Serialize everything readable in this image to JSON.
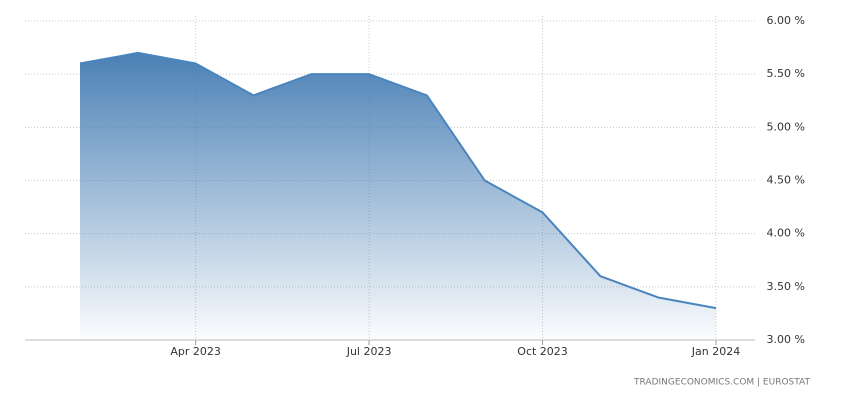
{
  "chart_data": {
    "type": "area",
    "x": [
      "2023-02",
      "2023-03",
      "2023-04",
      "2023-05",
      "2023-06",
      "2023-07",
      "2023-08",
      "2023-09",
      "2023-10",
      "2023-11",
      "2023-12",
      "2024-01"
    ],
    "values": [
      5.6,
      5.7,
      5.6,
      5.3,
      5.5,
      5.5,
      5.3,
      4.5,
      4.2,
      3.6,
      3.4,
      3.3
    ],
    "color": "#4a84be",
    "ylim": [
      3,
      6
    ],
    "yticks": [
      {
        "value": 3,
        "label": "3.00 %"
      },
      {
        "value": 3.5,
        "label": "3.50 %"
      },
      {
        "value": 4,
        "label": "4.00 %"
      },
      {
        "value": 4.5,
        "label": "4.50 %"
      },
      {
        "value": 5,
        "label": "5.00 %"
      },
      {
        "value": 5.5,
        "label": "5.50 %"
      },
      {
        "value": 6,
        "label": "6.00 %"
      }
    ],
    "xticks": [
      {
        "value": "2023-04",
        "label": "Apr 2023"
      },
      {
        "value": "2023-07",
        "label": "Jul 2023"
      },
      {
        "value": "2023-10",
        "label": "Oct 2023"
      },
      {
        "value": "2024-01",
        "label": "Jan 2024"
      }
    ],
    "grid": true,
    "source": "TRADINGECONOMICS.COM | EUROSTAT"
  }
}
